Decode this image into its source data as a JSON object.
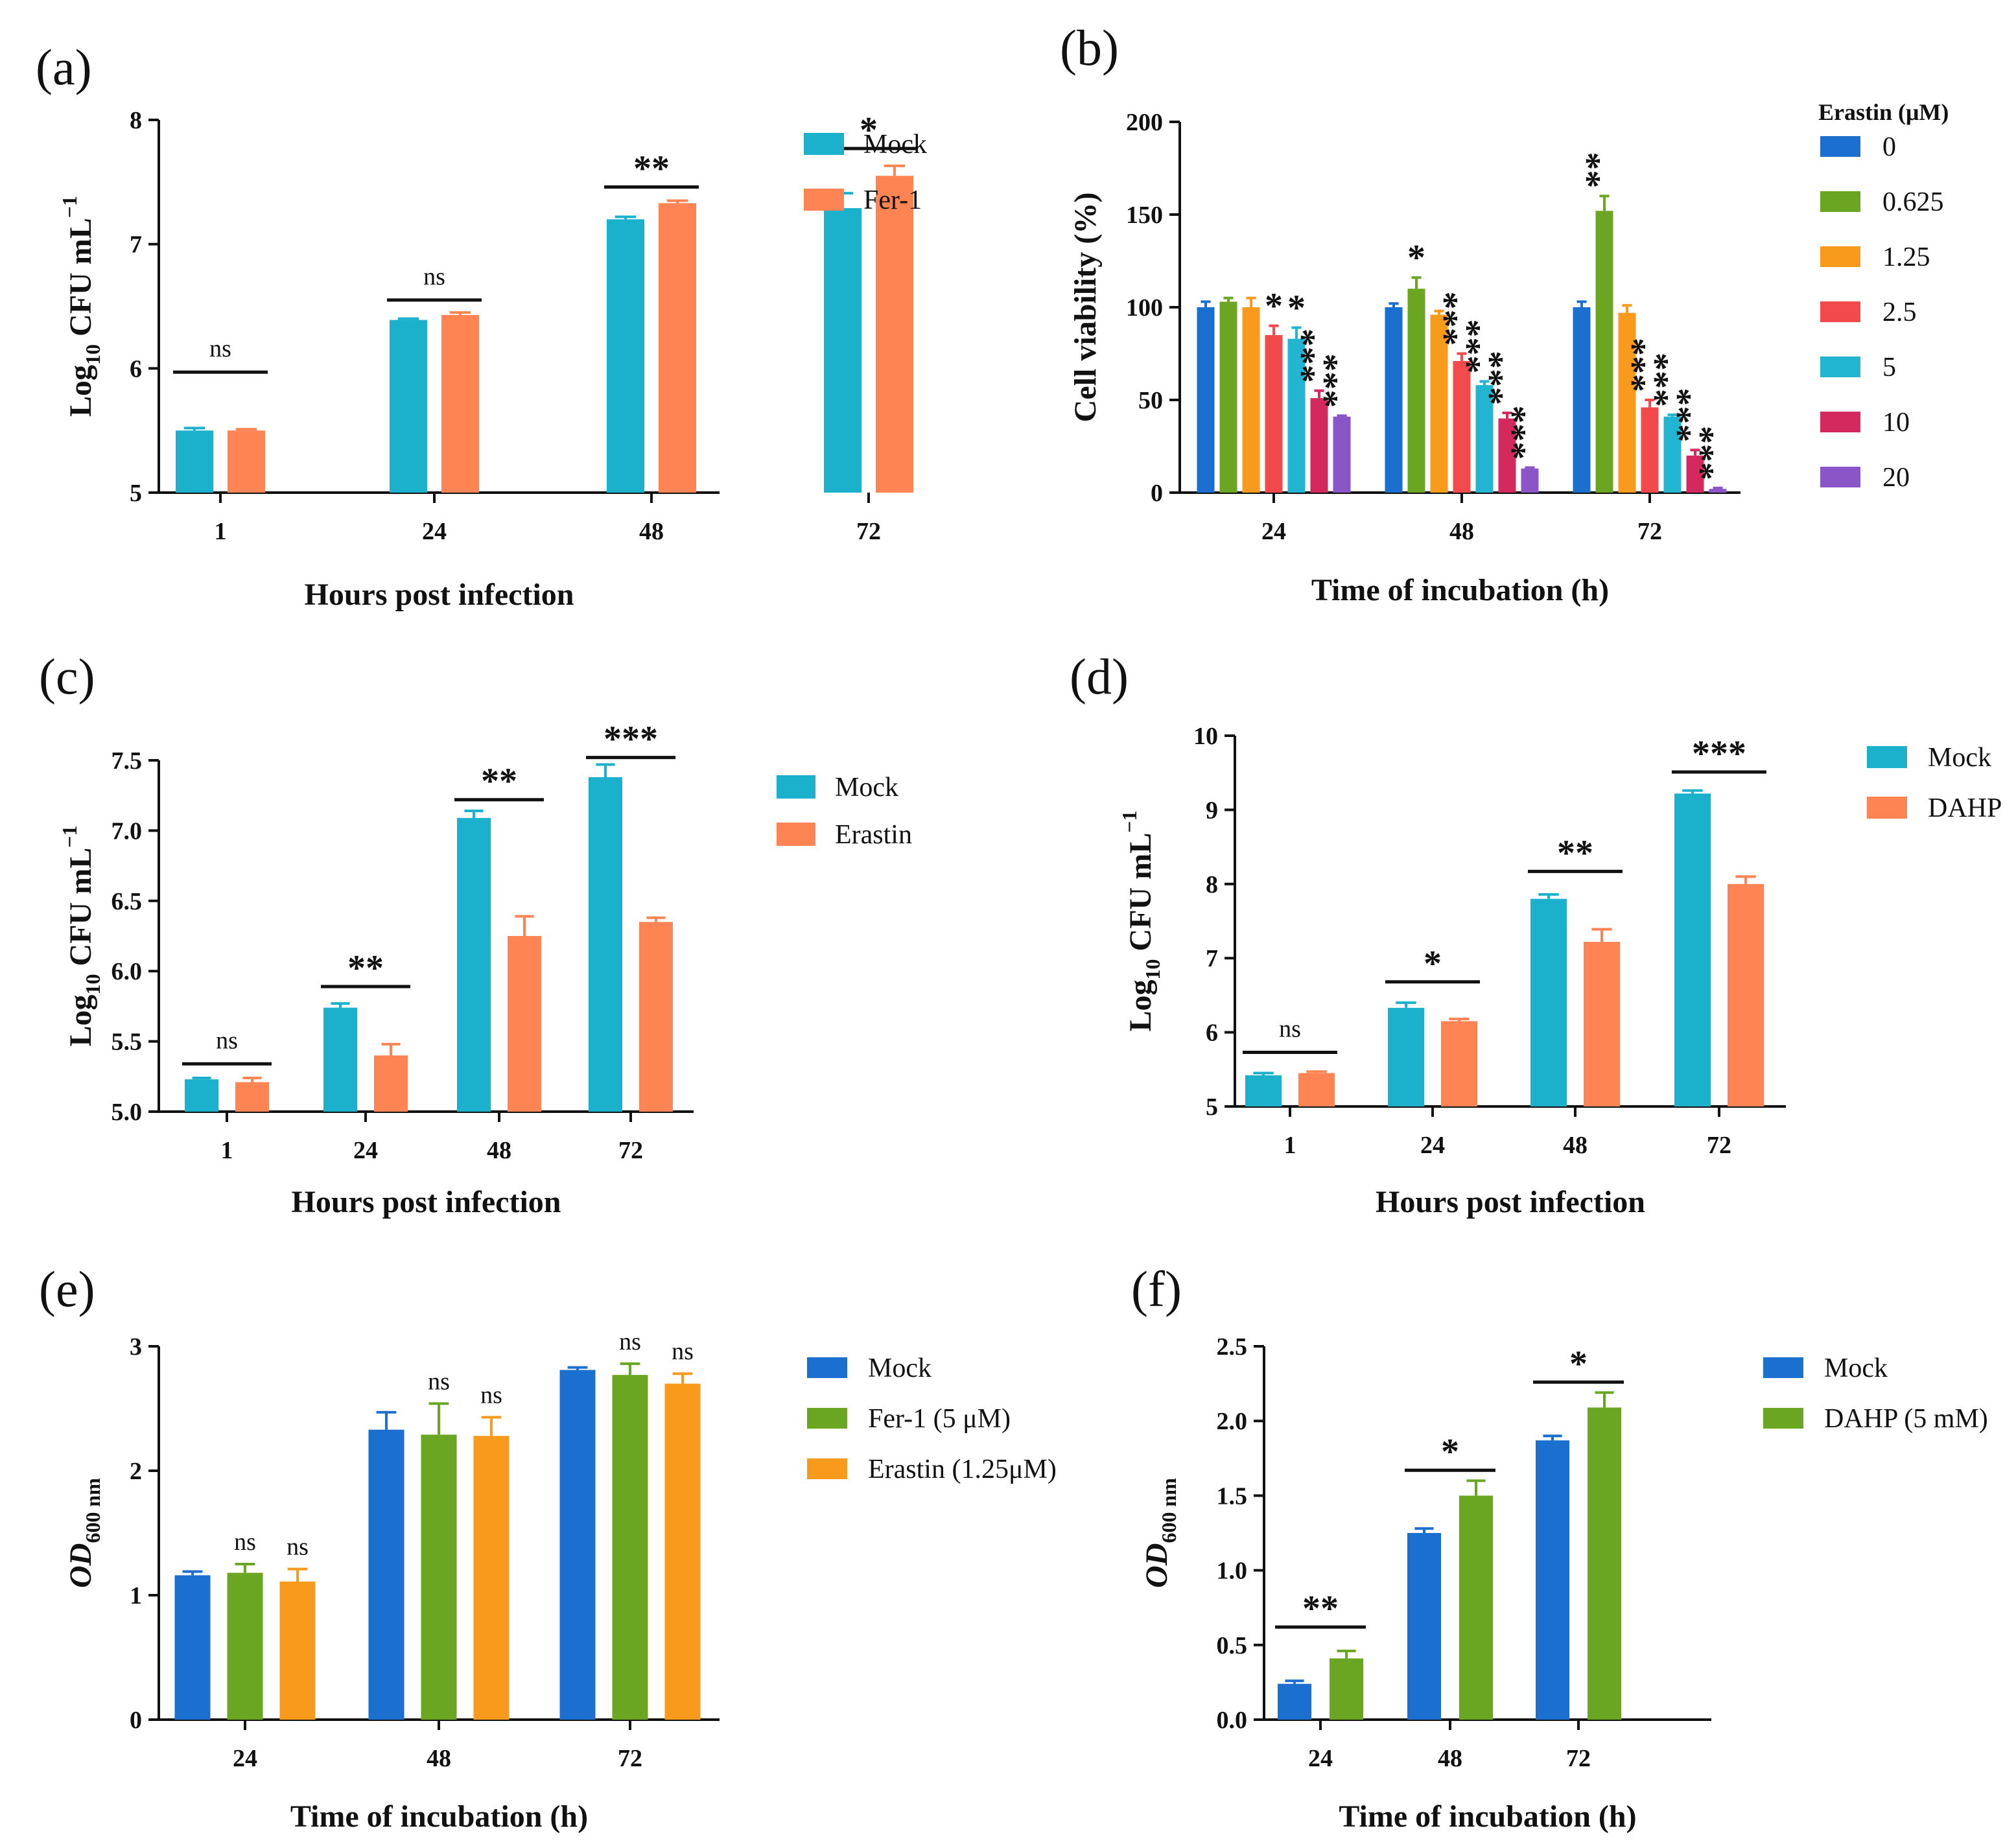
{
  "chart_data": [
    {
      "id": "a",
      "panel_label": "(a)",
      "type": "bar",
      "categories": [
        "1",
        "24",
        "48",
        "72"
      ],
      "series": [
        {
          "name": "Mock",
          "color": "#1bb1cd",
          "values": [
            5.5,
            6.39,
            7.2,
            7.29
          ],
          "errors": [
            0.02,
            0.01,
            0.02,
            0.12
          ]
        },
        {
          "name": "Fer-1",
          "color": "#ff8453",
          "values": [
            5.5,
            6.43,
            7.33,
            7.55
          ],
          "errors": [
            0.01,
            0.02,
            0.02,
            0.08
          ]
        }
      ],
      "ylim": [
        5,
        8
      ],
      "yticks": [
        "5",
        "6",
        "7",
        "8"
      ],
      "ylabel": {
        "main": "Log",
        "sub": "10",
        "rest": " CFU mL",
        "sup": "−1"
      },
      "xlabel": "Hours post infection",
      "significance": [
        {
          "group": 0,
          "label": "ns",
          "y": 5.97
        },
        {
          "group": 1,
          "label": "ns",
          "y": 6.55
        },
        {
          "group": 2,
          "label": "**",
          "y": 7.46
        },
        {
          "group": 3,
          "label": "*",
          "y": 7.77
        }
      ]
    },
    {
      "id": "b",
      "panel_label": "(b)",
      "type": "bar",
      "categories": [
        "24",
        "48",
        "72"
      ],
      "legend_title": "Erastin (μM)",
      "series": [
        {
          "name": "0",
          "color": "#1a6fcf",
          "values": [
            100,
            100,
            100
          ],
          "errors": [
            3,
            2,
            3
          ],
          "stars": [
            "",
            "",
            ""
          ]
        },
        {
          "name": "0.625",
          "color": "#6ba623",
          "values": [
            103,
            110,
            152
          ],
          "errors": [
            2,
            6,
            8
          ],
          "stars": [
            "",
            "*",
            "**"
          ]
        },
        {
          "name": "1.25",
          "color": "#f89a1c",
          "values": [
            100,
            96,
            97
          ],
          "errors": [
            5,
            2,
            4
          ],
          "stars": [
            "",
            "",
            ""
          ]
        },
        {
          "name": "2.5",
          "color": "#f24a4a",
          "values": [
            85,
            71,
            46
          ],
          "errors": [
            5,
            4,
            4
          ],
          "stars": [
            "*",
            "***",
            "***"
          ]
        },
        {
          "name": "5",
          "color": "#22b5d1",
          "values": [
            83,
            58,
            41
          ],
          "errors": [
            6,
            2,
            1
          ],
          "stars": [
            "*",
            "***",
            "***"
          ]
        },
        {
          "name": "10",
          "color": "#d4295e",
          "values": [
            51,
            40,
            20
          ],
          "errors": [
            4,
            3,
            3
          ],
          "stars": [
            "***",
            "***",
            "***"
          ]
        },
        {
          "name": "20",
          "color": "#8a55c6",
          "values": [
            41,
            13,
            2
          ],
          "errors": [
            0.5,
            0.5,
            0.5
          ],
          "stars": [
            "***",
            "***",
            "***"
          ]
        }
      ],
      "ylim": [
        0,
        200
      ],
      "yticks": [
        "0",
        "50",
        "100",
        "150",
        "200"
      ],
      "ylabel": "Cell viability (%)",
      "xlabel": "Time of incubation (h)"
    },
    {
      "id": "c",
      "panel_label": "(c)",
      "type": "bar",
      "categories": [
        "1",
        "24",
        "48",
        "72"
      ],
      "series": [
        {
          "name": "Mock",
          "color": "#1bb1cd",
          "values": [
            5.23,
            5.74,
            7.09,
            7.38
          ],
          "errors": [
            0.01,
            0.03,
            0.05,
            0.09
          ]
        },
        {
          "name": "Erastin",
          "color": "#ff8453",
          "values": [
            5.21,
            5.4,
            6.25,
            6.35
          ],
          "errors": [
            0.03,
            0.08,
            0.14,
            0.03
          ]
        }
      ],
      "ylim": [
        5.0,
        7.5
      ],
      "yticks": [
        "5.0",
        "5.5",
        "6.0",
        "6.5",
        "7.0",
        "7.5"
      ],
      "ylabel": {
        "main": "Log",
        "sub": "10",
        "rest": " CFU mL",
        "sup": "−1"
      },
      "xlabel": "Hours post infection",
      "significance": [
        {
          "group": 0,
          "label": "ns",
          "y": 5.34
        },
        {
          "group": 1,
          "label": "**",
          "y": 5.89
        },
        {
          "group": 2,
          "label": "**",
          "y": 7.22
        },
        {
          "group": 3,
          "label": "***",
          "y": 7.52
        }
      ]
    },
    {
      "id": "d",
      "panel_label": "(d)",
      "type": "bar",
      "categories": [
        "1",
        "24",
        "48",
        "72"
      ],
      "series": [
        {
          "name": "Mock",
          "color": "#1bb1cd",
          "values": [
            5.42,
            6.33,
            7.8,
            9.22
          ],
          "errors": [
            0.03,
            0.07,
            0.06,
            0.04
          ]
        },
        {
          "name": "DAHP",
          "color": "#ff8453",
          "values": [
            5.45,
            6.15,
            7.22,
            8.0
          ],
          "errors": [
            0.02,
            0.03,
            0.17,
            0.1
          ]
        }
      ],
      "ylim": [
        5,
        10
      ],
      "yticks": [
        "5",
        "6",
        "7",
        "8",
        "9",
        "10"
      ],
      "ylabel": {
        "main": "Log",
        "sub": "10",
        "rest": " CFU mL",
        "sup": "−1"
      },
      "xlabel": "Hours post infection",
      "significance": [
        {
          "group": 0,
          "label": "ns",
          "y": 5.73
        },
        {
          "group": 1,
          "label": "*",
          "y": 6.68
        },
        {
          "group": 2,
          "label": "**",
          "y": 8.17
        },
        {
          "group": 3,
          "label": "***",
          "y": 9.51
        }
      ]
    },
    {
      "id": "e",
      "panel_label": "(e)",
      "type": "bar",
      "categories": [
        "24",
        "48",
        "72"
      ],
      "series": [
        {
          "name": "Mock",
          "color": "#1a6fcf",
          "values": [
            1.16,
            2.33,
            2.81
          ],
          "errors": [
            0.03,
            0.14,
            0.02
          ],
          "stars": [
            "",
            "",
            ""
          ]
        },
        {
          "name": "Fer-1 (5 μM)",
          "color": "#6ba623",
          "values": [
            1.18,
            2.29,
            2.77
          ],
          "errors": [
            0.07,
            0.25,
            0.09
          ],
          "stars": [
            "ns",
            "ns",
            "ns"
          ]
        },
        {
          "name": "Erastin (1.25μM)",
          "color": "#f89a1c",
          "values": [
            1.11,
            2.28,
            2.7
          ],
          "errors": [
            0.1,
            0.15,
            0.08
          ],
          "stars": [
            "ns",
            "ns",
            "ns"
          ]
        }
      ],
      "ylim": [
        0,
        3
      ],
      "yticks": [
        "0",
        "1",
        "2",
        "3"
      ],
      "ylabel": {
        "main": "OD",
        "sub": "600 nm"
      },
      "xlabel": "Time of incubation (h)"
    },
    {
      "id": "f",
      "panel_label": "(f)",
      "type": "bar",
      "categories": [
        "24",
        "48",
        "72"
      ],
      "series": [
        {
          "name": "Mock",
          "color": "#1a6fcf",
          "values": [
            0.24,
            1.25,
            1.87
          ],
          "errors": [
            0.02,
            0.03,
            0.03
          ]
        },
        {
          "name": "DAHP (5 mM)",
          "color": "#6ba623",
          "values": [
            0.41,
            1.5,
            2.09
          ],
          "errors": [
            0.05,
            0.1,
            0.1
          ]
        }
      ],
      "ylim": [
        0,
        2.5
      ],
      "yticks": [
        "0.0",
        "0.5",
        "1.0",
        "1.5",
        "2.0",
        "2.5"
      ],
      "ylabel": {
        "main": "OD",
        "sub": "600 nm"
      },
      "xlabel": "Time of incubation (h)",
      "significance": [
        {
          "group": 0,
          "label": "**",
          "y": 0.62
        },
        {
          "group": 1,
          "label": "*",
          "y": 1.67
        },
        {
          "group": 2,
          "label": "*",
          "y": 2.26
        }
      ]
    }
  ]
}
